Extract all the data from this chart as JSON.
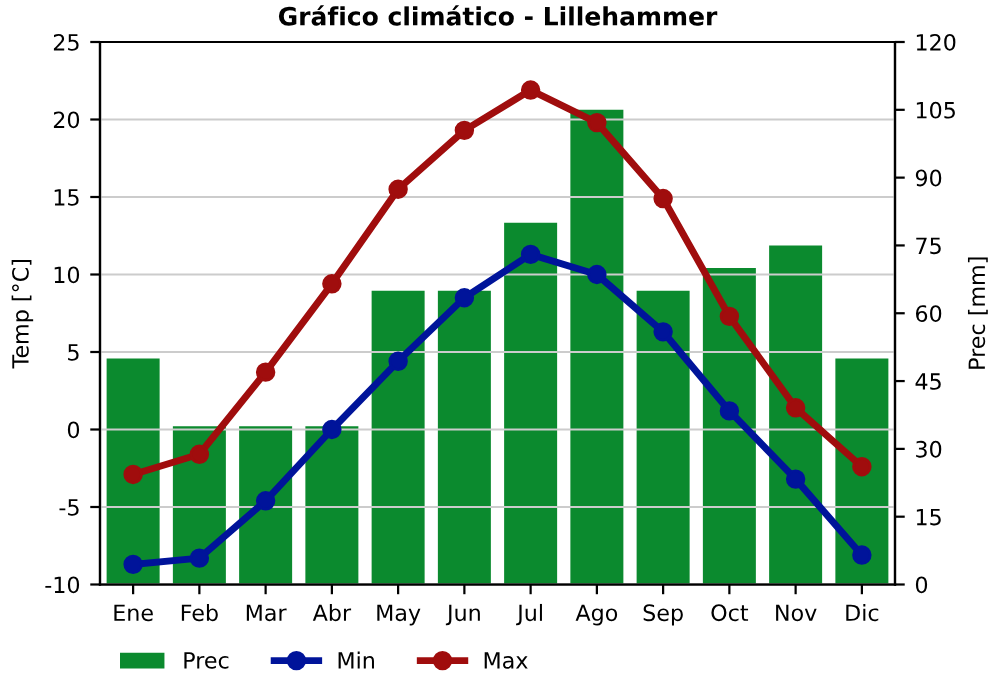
{
  "chart_data": {
    "type": "line",
    "title": "Gráfico climático - Lillehammer",
    "ylabel": "Temp [°C]",
    "y2label": "Prec [mm]",
    "categories": [
      "Ene",
      "Feb",
      "Mar",
      "Abr",
      "May",
      "Jun",
      "Jul",
      "Ago",
      "Sep",
      "Oct",
      "Nov",
      "Dic"
    ],
    "series": [
      {
        "name": "Prec",
        "type": "bar",
        "axis": "y2",
        "color": "#0b8a2e",
        "values": [
          50,
          35,
          35,
          35,
          65,
          65,
          80,
          105,
          65,
          70,
          75,
          50
        ]
      },
      {
        "name": "Min",
        "axis": "y",
        "color": "#00149a",
        "values": [
          -8.7,
          -8.3,
          -4.6,
          0,
          4.4,
          8.5,
          11.3,
          10,
          6.3,
          1.2,
          -3.2,
          -8.1
        ]
      },
      {
        "name": "Max",
        "axis": "y",
        "color": "#a00d0d",
        "values": [
          -2.9,
          -1.6,
          3.7,
          9.4,
          15.5,
          19.3,
          21.9,
          19.8,
          14.9,
          7.3,
          1.4,
          -2.4
        ]
      }
    ],
    "ylim": [
      -10,
      25
    ],
    "yticks": [
      -10,
      -5,
      0,
      5,
      10,
      15,
      20,
      25
    ],
    "y2lim": [
      0,
      120
    ],
    "y2ticks": [
      0,
      15,
      30,
      45,
      60,
      75,
      90,
      105,
      120
    ],
    "grid": "y",
    "legend": "bottom",
    "marker": "circle",
    "line_style": "solid"
  }
}
